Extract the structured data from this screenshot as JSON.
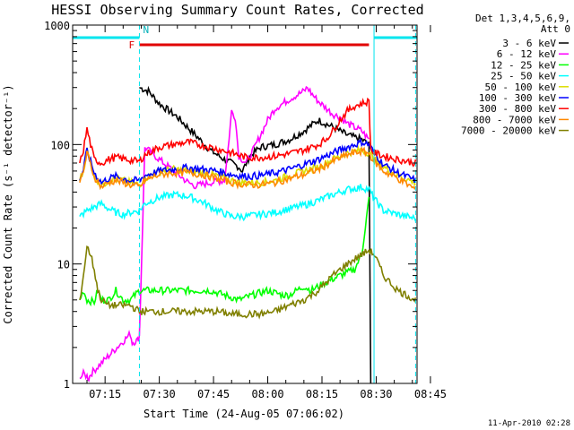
{
  "chart_data": {
    "type": "line",
    "title": "HESSI Observing Summary Count Rates, Corrected",
    "ylabel": "Corrected Count Rate (s⁻¹ detector⁻¹)",
    "xlabel": "Start Time (24-Aug-05 07:06:02)",
    "yscale": "log",
    "ylim": [
      1,
      1000
    ],
    "xlim_minutes": [
      6.03,
      101.3
    ],
    "x_ticks": [
      {
        "label": "07:15",
        "minute": 15
      },
      {
        "label": "07:30",
        "minute": 30
      },
      {
        "label": "07:45",
        "minute": 45
      },
      {
        "label": "08:00",
        "minute": 60
      },
      {
        "label": "08:15",
        "minute": 75
      },
      {
        "label": "08:30",
        "minute": 90
      },
      {
        "label": "08:45",
        "minute": 105
      }
    ],
    "y_ticks": [
      {
        "label": "1",
        "value": 1
      },
      {
        "label": "10",
        "value": 10
      },
      {
        "label": "100",
        "value": 100
      },
      {
        "label": "1000",
        "value": 1000
      }
    ],
    "grid": false,
    "legend_title": "Det 1,3,4,5,6,9,",
    "legend_title2": "Att 0",
    "legend_position": "top-right",
    "timestamp": "11-Apr-2010 02:28",
    "annotations": {
      "night_label": "N",
      "flare_label": "F",
      "night_segments": [
        [
          6.03,
          24.5
        ],
        [
          89.4,
          101.3
        ]
      ],
      "flare_segment": [
        24.5,
        88.0
      ],
      "night_boundaries": [
        24.5,
        100.9
      ]
    },
    "series": [
      {
        "name": "3 - 6 keV",
        "color": "#000000",
        "x": [
          24.5,
          27,
          30,
          35,
          40,
          44,
          48,
          52,
          53,
          55,
          58,
          62,
          66,
          70,
          74,
          78,
          82,
          86,
          88,
          88.5
        ],
        "y": [
          300,
          280,
          220,
          170,
          120,
          90,
          75,
          65,
          60,
          80,
          95,
          100,
          110,
          130,
          160,
          140,
          120,
          110,
          100,
          1
        ]
      },
      {
        "name": "6 - 12 keV",
        "color": "#ff00ff",
        "x": [
          8,
          9,
          10,
          10.5,
          11,
          22,
          22.5,
          24,
          24.5,
          26,
          30,
          34,
          38,
          40,
          44,
          48,
          49,
          50,
          51,
          52,
          54,
          56,
          58,
          60,
          62,
          66,
          70,
          71,
          72,
          74,
          78,
          80,
          82,
          86,
          88
        ],
        "y": [
          1.1,
          1.2,
          1.15,
          1.1,
          1.2,
          2.6,
          2.2,
          2.3,
          2.5,
          95,
          75,
          60,
          48,
          45,
          48,
          50,
          90,
          190,
          170,
          80,
          70,
          90,
          120,
          160,
          200,
          240,
          280,
          300,
          270,
          230,
          180,
          170,
          150,
          130,
          110
        ]
      },
      {
        "name": "12 - 25 keV",
        "color": "#00ff00",
        "x": [
          8,
          9,
          10,
          12,
          13,
          14,
          16,
          18,
          20,
          22,
          24.5,
          26,
          30,
          34,
          38,
          40,
          44,
          48,
          52,
          56,
          60,
          64,
          66,
          68,
          70,
          72,
          76,
          80,
          84,
          86,
          88
        ],
        "y": [
          5,
          6,
          5,
          4.8,
          6,
          5,
          5,
          6,
          5,
          5,
          6,
          6,
          6,
          6,
          6,
          6,
          6,
          5.5,
          5,
          5.5,
          6,
          5.5,
          5.5,
          6,
          6.5,
          6,
          7,
          8,
          9,
          12,
          35
        ]
      },
      {
        "name": "25 - 50 keV",
        "color": "#00ffff",
        "x": [
          8,
          10,
          12,
          14,
          16,
          18,
          20,
          22,
          24.5,
          26,
          30,
          34,
          38,
          42,
          46,
          50,
          54,
          58,
          62,
          66,
          70,
          74,
          78,
          82,
          86,
          88,
          89.5,
          92,
          96,
          100.9
        ],
        "y": [
          25,
          28,
          30,
          32,
          29,
          27,
          26,
          27,
          28,
          32,
          36,
          38,
          37,
          33,
          28,
          25,
          25,
          26,
          27,
          29,
          31,
          34,
          38,
          42,
          44,
          42,
          35,
          28,
          26,
          24
        ]
      },
      {
        "name": "50 - 100 keV",
        "color": "#dddd00",
        "x": [
          8,
          9,
          10,
          11,
          12,
          14,
          16,
          18,
          20,
          22,
          24.5,
          26,
          30,
          34,
          38,
          42,
          46,
          50,
          54,
          58,
          62,
          66,
          70,
          74,
          78,
          82,
          86,
          88,
          89.5,
          92,
          96,
          100.9
        ],
        "y": [
          50,
          60,
          90,
          70,
          55,
          45,
          50,
          52,
          50,
          48,
          46,
          52,
          60,
          62,
          60,
          58,
          55,
          50,
          48,
          48,
          50,
          55,
          60,
          65,
          75,
          85,
          90,
          85,
          75,
          65,
          55,
          48
        ]
      },
      {
        "name": "100 - 300 keV",
        "color": "#0000ff",
        "x": [
          8,
          9,
          10,
          11,
          12,
          14,
          16,
          18,
          20,
          22,
          24.5,
          26,
          30,
          34,
          38,
          42,
          46,
          50,
          54,
          58,
          62,
          66,
          70,
          74,
          78,
          82,
          86,
          88,
          89.5,
          92,
          96,
          100.9
        ],
        "y": [
          50,
          62,
          90,
          72,
          58,
          48,
          52,
          54,
          52,
          50,
          50,
          55,
          60,
          62,
          64,
          62,
          60,
          56,
          54,
          55,
          58,
          62,
          68,
          75,
          85,
          95,
          105,
          100,
          85,
          68,
          58,
          50
        ]
      },
      {
        "name": "300 - 800 keV",
        "color": "#ff0000",
        "x": [
          8,
          9,
          10,
          11,
          12,
          14,
          16,
          18,
          20,
          22,
          24.5,
          26,
          30,
          34,
          38,
          42,
          46,
          50,
          54,
          58,
          62,
          66,
          70,
          74,
          76,
          78,
          80,
          82,
          84,
          86,
          88,
          88.5,
          89.5,
          92,
          96,
          100.9
        ],
        "y": [
          70,
          90,
          135,
          100,
          75,
          70,
          75,
          78,
          76,
          74,
          72,
          82,
          95,
          100,
          105,
          98,
          92,
          85,
          78,
          78,
          80,
          84,
          90,
          100,
          110,
          130,
          160,
          190,
          210,
          220,
          230,
          90,
          85,
          80,
          75,
          70
        ]
      },
      {
        "name": "800 - 7000 keV",
        "color": "#ff8800",
        "x": [
          8,
          9,
          10,
          11,
          12,
          14,
          16,
          18,
          20,
          22,
          24.5,
          26,
          30,
          34,
          38,
          42,
          46,
          50,
          54,
          58,
          62,
          66,
          70,
          74,
          78,
          82,
          86,
          88,
          89.5,
          92,
          96,
          100.9
        ],
        "y": [
          48,
          60,
          85,
          68,
          54,
          44,
          48,
          50,
          48,
          46,
          44,
          50,
          56,
          58,
          58,
          56,
          52,
          48,
          46,
          46,
          48,
          52,
          56,
          62,
          72,
          82,
          88,
          84,
          72,
          60,
          52,
          42
        ]
      },
      {
        "name": "7000 - 20000 keV",
        "color": "#808000",
        "x": [
          8,
          9,
          10,
          11,
          12,
          13,
          14,
          16,
          18,
          20,
          22,
          24.5,
          26,
          30,
          34,
          38,
          42,
          46,
          50,
          54,
          58,
          62,
          66,
          70,
          74,
          78,
          82,
          86,
          88,
          89.5,
          92,
          96,
          100.9
        ],
        "y": [
          5,
          8,
          14,
          12,
          9,
          6,
          5,
          4.5,
          4.5,
          4.5,
          4.5,
          4,
          4,
          4,
          4,
          4,
          4,
          4,
          3.8,
          3.8,
          3.8,
          4,
          4.5,
          5,
          6,
          8,
          10,
          12,
          13,
          12,
          8,
          6,
          5
        ]
      }
    ]
  }
}
